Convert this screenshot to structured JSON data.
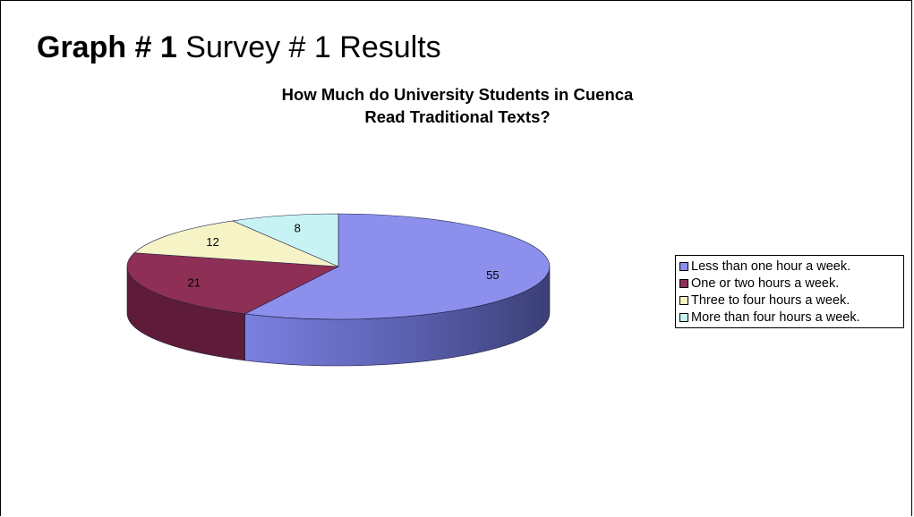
{
  "slide": {
    "title_bold": "Graph # 1",
    "title_rest": "Survey # 1 Results"
  },
  "chart_data": {
    "type": "pie",
    "title_line1": "How Much do University Students in Cuenca",
    "title_line2": "Read Traditional Texts?",
    "categories": [
      "Less than one hour a week.",
      "One or two hours a week.",
      "Three to four hours a week.",
      "More than four hours a week."
    ],
    "values": [
      55,
      21,
      12,
      8
    ],
    "data_labels": [
      "55",
      "21",
      "12",
      "8"
    ],
    "colors": [
      "#8c90ec",
      "#8e2f56",
      "#f6f4c6",
      "#c8f3f4"
    ],
    "side_colors": [
      "#585ca8",
      "#5e1c38",
      "#b8b68a",
      "#8cb6b8"
    ],
    "style": "3d-tilted",
    "legend_position": "right"
  }
}
